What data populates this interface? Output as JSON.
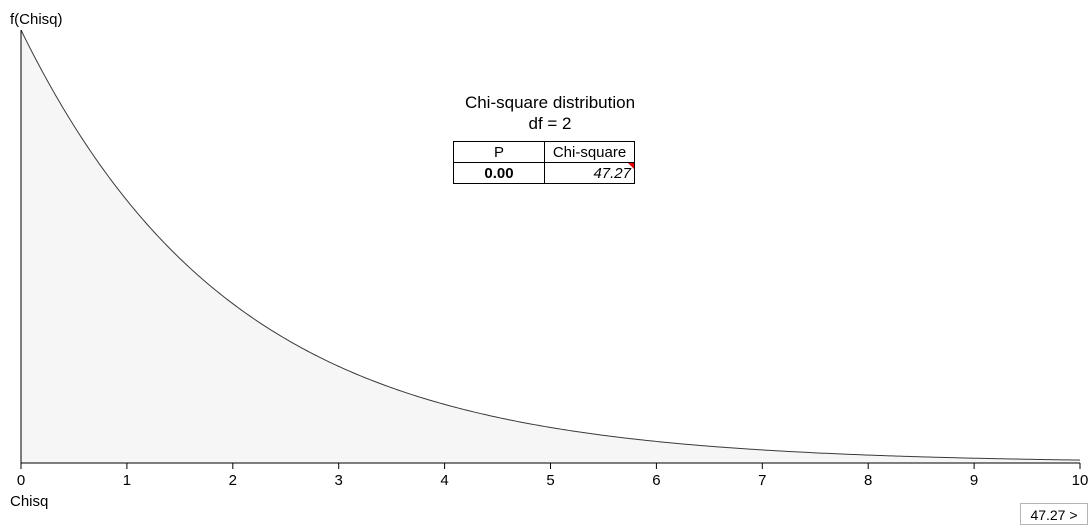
{
  "chart_data": {
    "type": "area",
    "title": "Chi-square distribution",
    "subtitle": "df = 2",
    "df": 2,
    "ylabel": "f(Chisq)",
    "xlabel": "Chisq",
    "xlim": [
      0,
      10
    ],
    "ylim": [
      0,
      0.5
    ],
    "xticks": [
      0,
      1,
      2,
      3,
      4,
      5,
      6,
      7,
      8,
      9,
      10
    ],
    "xtick_labels": [
      "0",
      "1",
      "2",
      "3",
      "4",
      "5",
      "6",
      "7",
      "8",
      "9",
      "10"
    ],
    "series": [
      {
        "x": [
          0,
          0.5,
          1,
          1.5,
          2,
          2.5,
          3,
          3.5,
          4,
          4.5,
          5,
          5.5,
          6,
          6.5,
          7,
          7.5,
          8,
          8.5,
          9,
          9.5,
          10
        ],
        "y": [
          0.5,
          0.389,
          0.303,
          0.236,
          0.184,
          0.143,
          0.112,
          0.087,
          0.068,
          0.053,
          0.041,
          0.032,
          0.025,
          0.019,
          0.015,
          0.012,
          0.009,
          0.007,
          0.006,
          0.004,
          0.003
        ]
      }
    ],
    "line_color": "#3a3a3a",
    "fill_color": "#f6f6f6",
    "grid": false,
    "legend": "none"
  },
  "table": {
    "headers": [
      "P",
      "Chi-square"
    ],
    "p_value": "0.00",
    "chi_square_value": "47.27"
  },
  "nav_button": {
    "label": "47.27 >"
  }
}
